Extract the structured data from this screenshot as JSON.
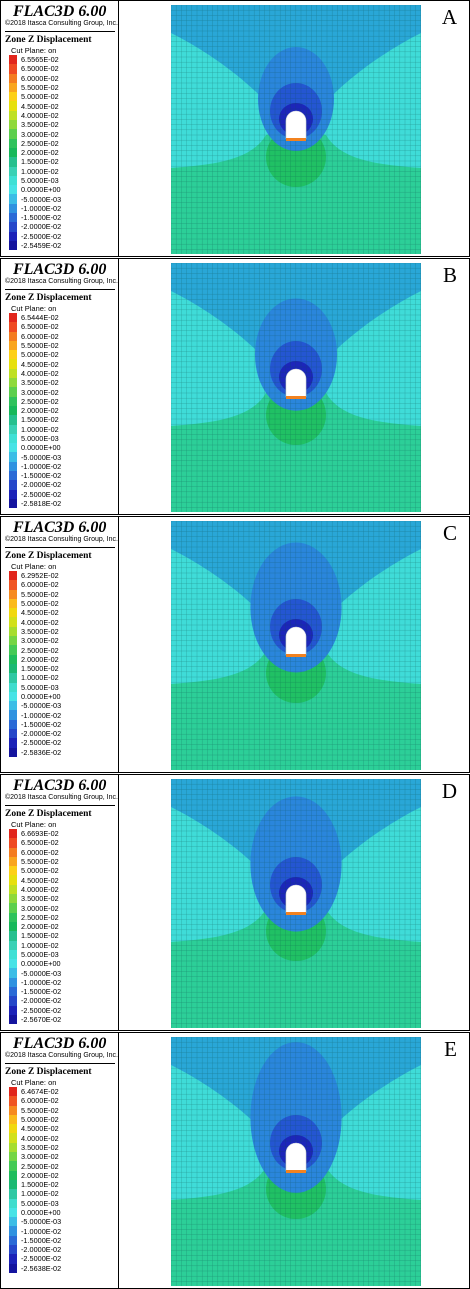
{
  "figure": {
    "panels": [
      {
        "letter": "A",
        "app_title": "FLAC3D 6.00",
        "copyright": "©2018 Itasca Consulting Group, Inc.",
        "quantity": "Zone Z Displacement",
        "cut_plane": "Cut Plane: on",
        "levels": [
          "6.5565E-02",
          "6.5000E-02",
          "6.0000E-02",
          "5.5000E-02",
          "5.0000E-02",
          "4.5000E-02",
          "4.0000E-02",
          "3.5000E-02",
          "3.0000E-02",
          "2.5000E-02",
          "2.0000E-02",
          "1.5000E-02",
          "1.0000E-02",
          "5.0000E-03",
          "0.0000E+00",
          "-5.0000E-03",
          "-1.0000E-02",
          "-1.5000E-02",
          "-2.0000E-02",
          "-2.5000E-02",
          "-2.5459E-02"
        ]
      },
      {
        "letter": "B",
        "app_title": "FLAC3D 6.00",
        "copyright": "©2018 Itasca Consulting Group, Inc.",
        "quantity": "Zone Z Displacement",
        "cut_plane": "Cut Plane: on",
        "levels": [
          "6.5444E-02",
          "6.5000E-02",
          "6.0000E-02",
          "5.5000E-02",
          "5.0000E-02",
          "4.5000E-02",
          "4.0000E-02",
          "3.5000E-02",
          "3.0000E-02",
          "2.5000E-02",
          "2.0000E-02",
          "1.5000E-02",
          "1.0000E-02",
          "5.0000E-03",
          "0.0000E+00",
          "-5.0000E-03",
          "-1.0000E-02",
          "-1.5000E-02",
          "-2.0000E-02",
          "-2.5000E-02",
          "-2.5818E-02"
        ]
      },
      {
        "letter": "C",
        "app_title": "FLAC3D 6.00",
        "copyright": "©2018 Itasca Consulting Group, Inc.",
        "quantity": "Zone Z Displacement",
        "cut_plane": "Cut Plane: on",
        "levels": [
          "6.2952E-02",
          "6.0000E-02",
          "5.5000E-02",
          "5.0000E-02",
          "4.5000E-02",
          "4.0000E-02",
          "3.5000E-02",
          "3.0000E-02",
          "2.5000E-02",
          "2.0000E-02",
          "1.5000E-02",
          "1.0000E-02",
          "5.0000E-03",
          "0.0000E+00",
          "-5.0000E-03",
          "-1.0000E-02",
          "-1.5000E-02",
          "-2.0000E-02",
          "-2.5000E-02",
          "-2.5836E-02"
        ]
      },
      {
        "letter": "D",
        "app_title": "FLAC3D 6.00",
        "copyright": "©2018 Itasca Consulting Group, Inc.",
        "quantity": "Zone Z Displacement",
        "cut_plane": "Cut Plane: on",
        "levels": [
          "6.6693E-02",
          "6.5000E-02",
          "6.0000E-02",
          "5.5000E-02",
          "5.0000E-02",
          "4.5000E-02",
          "4.0000E-02",
          "3.5000E-02",
          "3.0000E-02",
          "2.5000E-02",
          "2.0000E-02",
          "1.5000E-02",
          "1.0000E-02",
          "5.0000E-03",
          "0.0000E+00",
          "-5.0000E-03",
          "-1.0000E-02",
          "-1.5000E-02",
          "-2.0000E-02",
          "-2.5000E-02",
          "-2.5670E-02"
        ]
      },
      {
        "letter": "E",
        "app_title": "FLAC3D 6.00",
        "copyright": "©2018 Itasca Consulting Group, Inc.",
        "quantity": "Zone Z Displacement",
        "cut_plane": "Cut Plane: on",
        "levels": [
          "6.4674E-02",
          "6.0000E-02",
          "5.5000E-02",
          "5.0000E-02",
          "4.5000E-02",
          "4.0000E-02",
          "3.5000E-02",
          "3.0000E-02",
          "2.5000E-02",
          "2.0000E-02",
          "1.5000E-02",
          "1.0000E-02",
          "5.0000E-03",
          "0.0000E+00",
          "-5.0000E-03",
          "-1.0000E-02",
          "-1.5000E-02",
          "-2.0000E-02",
          "-2.5000E-02",
          "-2.5638E-02"
        ]
      }
    ],
    "colors": {
      "scale_21": [
        "#e1261c",
        "#ef4a22",
        "#f47c20",
        "#f9a51e",
        "#fdd017",
        "#e7e00d",
        "#bfe023",
        "#8fd93b",
        "#5ccf4d",
        "#2fc25c",
        "#17b85a",
        "#26c08e",
        "#3ad1b5",
        "#3fe0d5",
        "#47e3e6",
        "#3bbde6",
        "#2f92e0",
        "#2a6ad6",
        "#2547c9",
        "#1b22b8",
        "#14149e"
      ],
      "scale_20": [
        "#e1261c",
        "#f05523",
        "#f68a20",
        "#fbba1c",
        "#f1d80f",
        "#d2e01a",
        "#a6dd2f",
        "#74d544",
        "#44ca55",
        "#1fbd5c",
        "#1bb973",
        "#2fc8a3",
        "#3fdccd",
        "#47e3e6",
        "#3bbde6",
        "#2f92e0",
        "#2a6ad6",
        "#2547c9",
        "#1b22b8",
        "#14149e"
      ],
      "plot_upper": "#29a7d7",
      "plot_mid": "#3fdcd8",
      "plot_lower": "#2ccf98",
      "bulb_outer": "#2a86dc",
      "bulb_inner": "#2456d2",
      "bulb_core": "#1c26ba",
      "mesh_line": "#0f4f4a",
      "tunnel": "#ffffff",
      "tunnel_base": "#f2821f"
    }
  }
}
